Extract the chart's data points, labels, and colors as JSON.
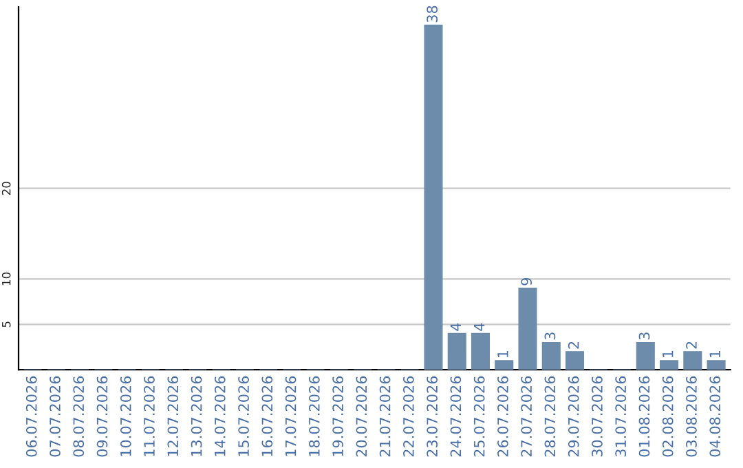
{
  "chart_data": {
    "type": "bar",
    "categories": [
      "06.07.2026",
      "07.07.2026",
      "08.07.2026",
      "09.07.2026",
      "10.07.2026",
      "11.07.2026",
      "12.07.2026",
      "13.07.2026",
      "14.07.2026",
      "15.07.2026",
      "16.07.2026",
      "17.07.2026",
      "18.07.2026",
      "19.07.2026",
      "20.07.2026",
      "21.07.2026",
      "22.07.2026",
      "23.07.2026",
      "24.07.2026",
      "25.07.2026",
      "26.07.2026",
      "27.07.2026",
      "28.07.2026",
      "29.07.2026",
      "30.07.2026",
      "31.07.2026",
      "01.08.2026",
      "02.08.2026",
      "03.08.2026",
      "04.08.2026"
    ],
    "values": [
      0,
      0,
      0,
      0,
      0,
      0,
      0,
      0,
      0,
      0,
      0,
      0,
      0,
      0,
      0,
      0,
      0,
      38,
      4,
      4,
      1,
      9,
      3,
      2,
      0,
      0,
      3,
      1,
      2,
      1
    ],
    "value_labels": [
      null,
      null,
      null,
      null,
      null,
      null,
      null,
      null,
      null,
      null,
      null,
      null,
      null,
      null,
      null,
      null,
      null,
      "38",
      "4",
      "4",
      "1",
      "9",
      "3",
      "2",
      null,
      null,
      "3",
      "1",
      "2",
      "1"
    ],
    "color": "#6d8cab",
    "ylim": [
      0,
      40
    ],
    "yticks": [
      5,
      10,
      20
    ],
    "grid": "y"
  }
}
